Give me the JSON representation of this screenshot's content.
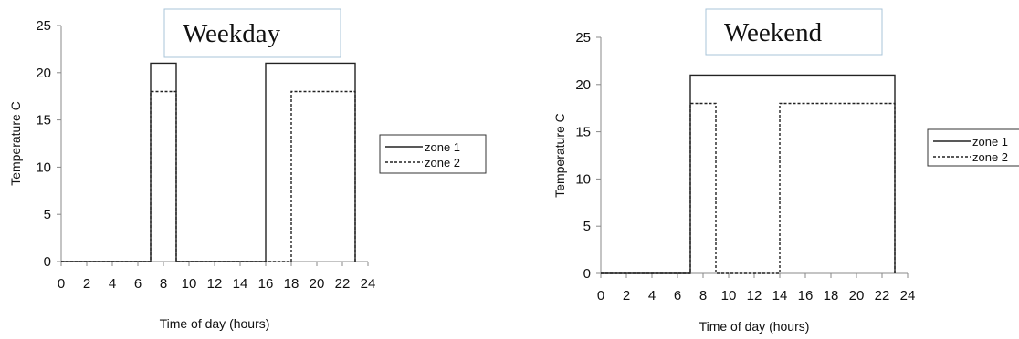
{
  "chart_data": [
    {
      "type": "line",
      "title": "Weekday",
      "xlabel": "Time of day (hours)",
      "ylabel": "Temperature C",
      "xlim": [
        0,
        24
      ],
      "ylim": [
        0,
        25
      ],
      "xticks": [
        0,
        2,
        4,
        6,
        8,
        10,
        12,
        14,
        16,
        18,
        20,
        22,
        24
      ],
      "yticks": [
        0,
        5,
        10,
        15,
        20,
        25
      ],
      "legend_position": "right",
      "series": [
        {
          "name": "zone 1",
          "style": "solid",
          "x": [
            0,
            7,
            7,
            9,
            9,
            16,
            16,
            23,
            23
          ],
          "y": [
            0,
            0,
            21,
            21,
            0,
            0,
            21,
            21,
            0
          ]
        },
        {
          "name": "zone 2",
          "style": "dotted",
          "x": [
            0,
            7,
            7,
            9,
            9,
            18,
            18,
            23,
            23
          ],
          "y": [
            0,
            0,
            18,
            18,
            0,
            0,
            18,
            18,
            0
          ]
        }
      ]
    },
    {
      "type": "line",
      "title": "Weekend",
      "xlabel": "Time of day (hours)",
      "ylabel": "Temperature C",
      "xlim": [
        0,
        24
      ],
      "ylim": [
        0,
        25
      ],
      "xticks": [
        0,
        2,
        4,
        6,
        8,
        10,
        12,
        14,
        16,
        18,
        20,
        22,
        24
      ],
      "yticks": [
        0,
        5,
        10,
        15,
        20,
        25
      ],
      "legend_position": "right",
      "series": [
        {
          "name": "zone 1",
          "style": "solid",
          "x": [
            0,
            7,
            7,
            23,
            23
          ],
          "y": [
            0,
            0,
            21,
            21,
            0
          ]
        },
        {
          "name": "zone 2",
          "style": "dotted",
          "x": [
            0,
            7,
            7,
            9,
            9,
            14,
            14,
            23,
            23
          ],
          "y": [
            0,
            0,
            18,
            18,
            0,
            0,
            18,
            18,
            0
          ]
        }
      ]
    }
  ]
}
